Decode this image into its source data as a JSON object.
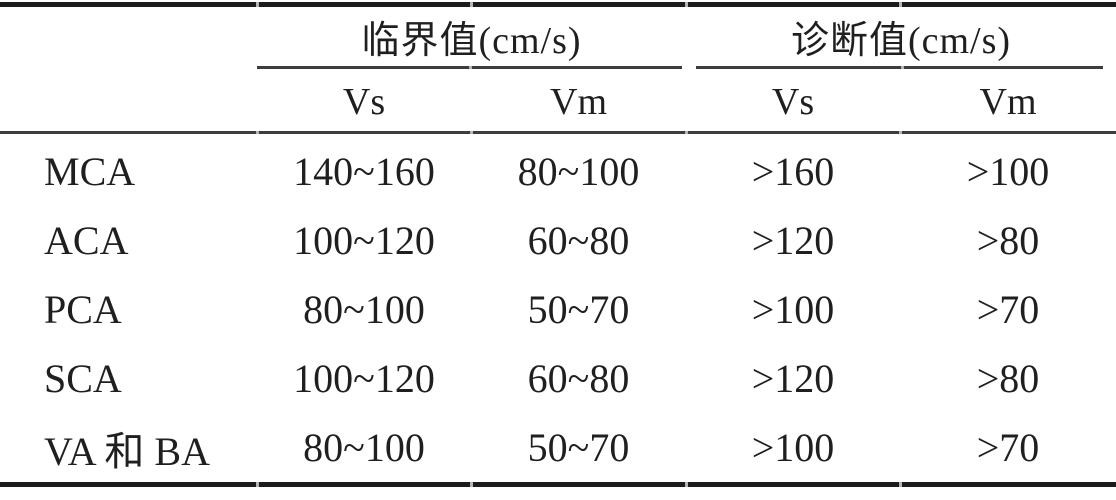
{
  "colors": {
    "page_bg": "#ffffff",
    "text": "#1f1f1f",
    "rule_thick": "#1c1c1c",
    "rule_thin": "#3d3d3d",
    "rule_notch": "#b5b5b5"
  },
  "table": {
    "col_groups": [
      {
        "label": "临界值(cm/s)"
      },
      {
        "label": "诊断值(cm/s)"
      }
    ],
    "sub_headers": [
      "Vs",
      "Vm",
      "Vs",
      "Vm"
    ],
    "rows": [
      {
        "label": "MCA",
        "values": [
          "140~160",
          "80~100",
          ">160",
          ">100"
        ]
      },
      {
        "label": "ACA",
        "values": [
          "100~120",
          "60~80",
          ">120",
          ">80"
        ]
      },
      {
        "label": "PCA",
        "values": [
          "80~100",
          "50~70",
          ">100",
          ">70"
        ]
      },
      {
        "label": "SCA",
        "values": [
          "100~120",
          "60~80",
          ">120",
          ">80"
        ]
      },
      {
        "label": "VA 和 BA",
        "values": [
          "80~100",
          "50~70",
          ">100",
          ">70"
        ]
      }
    ]
  }
}
